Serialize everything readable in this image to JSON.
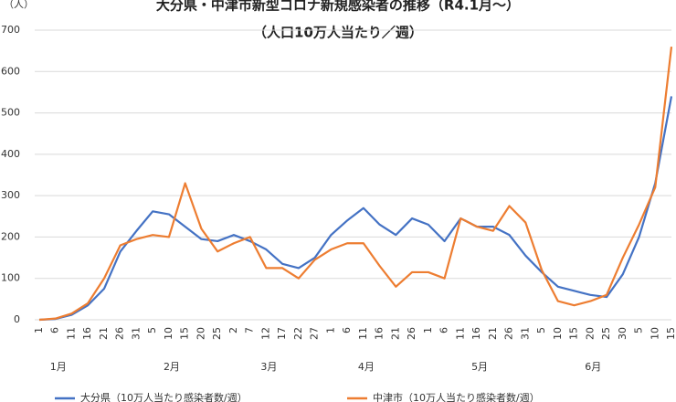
{
  "chart_data": {
    "type": "line",
    "title": "大分県・中津市新型コロナ新規感染者の推移（R4.1月〜）",
    "subtitle": "（人口10万人当たり／週）",
    "y_label": "（人）",
    "categories": [
      "1",
      "6",
      "11",
      "16",
      "21",
      "26",
      "31",
      "5",
      "10",
      "15",
      "20",
      "25",
      "2",
      "7",
      "12",
      "17",
      "22",
      "27",
      "1",
      "6",
      "11",
      "16",
      "21",
      "26",
      "1",
      "6",
      "11",
      "16",
      "21",
      "26",
      "31",
      "5",
      "10",
      "15",
      "20",
      "25",
      "30",
      "5",
      "10",
      "15"
    ],
    "month_labels": [
      {
        "label": "1月",
        "at": 1
      },
      {
        "label": "2月",
        "at": 8
      },
      {
        "label": "3月",
        "at": 14
      },
      {
        "label": "4月",
        "at": 20
      },
      {
        "label": "5月",
        "at": 27
      },
      {
        "label": "6月",
        "at": 34
      }
    ],
    "series": [
      {
        "name": "大分県（10万人当たり感染者数/週）",
        "color": "#4472c4",
        "values": [
          0,
          2,
          12,
          35,
          75,
          165,
          215,
          262,
          255,
          225,
          195,
          190,
          205,
          190,
          170,
          135,
          125,
          150,
          205,
          240,
          270,
          230,
          205,
          245,
          230,
          190,
          245,
          225,
          225,
          205,
          155,
          115,
          80,
          70,
          60,
          55,
          110,
          200,
          330,
          540
        ]
      },
      {
        "name": "中津市（10万人当たり感染者数/週）",
        "color": "#ed7d31",
        "values": [
          0,
          3,
          15,
          40,
          100,
          180,
          195,
          205,
          200,
          330,
          220,
          165,
          185,
          200,
          125,
          125,
          100,
          145,
          170,
          185,
          185,
          130,
          80,
          115,
          115,
          100,
          245,
          225,
          215,
          275,
          235,
          120,
          45,
          35,
          45,
          60,
          150,
          230,
          320,
          660
        ]
      }
    ],
    "ylim": [
      0,
      700
    ],
    "yticks": [
      0,
      100,
      200,
      300,
      400,
      500,
      600,
      700
    ],
    "grid": true
  }
}
